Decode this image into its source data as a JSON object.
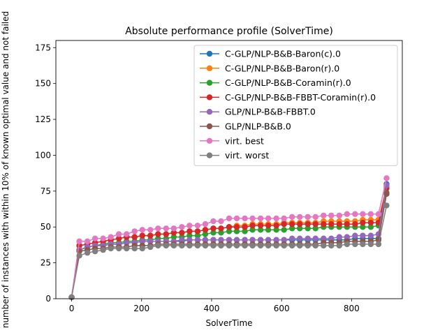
{
  "chart_data": {
    "type": "line",
    "title": "Absolute performance profile (SolverTime)",
    "xlabel": "SolverTime",
    "ylabel": "number of instances with within 10% of known optimal value and not failed",
    "xlim": [
      -45,
      945
    ],
    "ylim": [
      0,
      180
    ],
    "xticks": [
      0,
      200,
      400,
      600,
      800
    ],
    "yticks": [
      0,
      25,
      50,
      75,
      100,
      125,
      150,
      175
    ],
    "grid": false,
    "legend_position": "top-right",
    "x": [
      0,
      22,
      45,
      67,
      90,
      112,
      135,
      157,
      180,
      202,
      225,
      247,
      270,
      292,
      315,
      337,
      360,
      382,
      405,
      427,
      450,
      472,
      495,
      517,
      540,
      562,
      585,
      607,
      630,
      652,
      675,
      697,
      720,
      742,
      765,
      787,
      810,
      832,
      855,
      877,
      900
    ],
    "series": [
      {
        "name": "C-GLP/NLP-B&B-Baron(c).0",
        "color": "#1f77b4",
        "values": [
          1,
          34,
          36,
          37,
          37,
          38,
          38,
          39,
          39,
          40,
          40,
          40,
          40,
          40,
          40,
          41,
          41,
          41,
          41,
          41,
          41,
          41,
          41,
          41,
          41,
          41,
          41,
          41,
          41,
          41,
          41,
          41,
          41,
          41,
          41,
          41,
          42,
          42,
          42,
          42,
          80
        ]
      },
      {
        "name": "C-GLP/NLP-B&B-Baron(r).0",
        "color": "#ff7f0e",
        "values": [
          1,
          37,
          38,
          39,
          40,
          41,
          42,
          43,
          43,
          44,
          44,
          45,
          45,
          46,
          46,
          47,
          47,
          48,
          49,
          49,
          50,
          51,
          51,
          52,
          52,
          52,
          52,
          53,
          53,
          53,
          53,
          53,
          54,
          54,
          54,
          54,
          54,
          55,
          55,
          55,
          78
        ]
      },
      {
        "name": "C-GLP/NLP-B&B-Coramin(r).0",
        "color": "#2ca02c",
        "values": [
          1,
          34,
          36,
          37,
          38,
          39,
          39,
          40,
          40,
          41,
          41,
          42,
          42,
          43,
          43,
          44,
          44,
          45,
          46,
          46,
          47,
          47,
          47,
          48,
          48,
          48,
          48,
          48,
          49,
          49,
          49,
          49,
          50,
          50,
          50,
          50,
          50,
          50,
          50,
          51,
          74
        ]
      },
      {
        "name": "C-GLP/NLP-B&B-FBBT-Coramin(r).0",
        "color": "#d62728",
        "values": [
          1,
          37,
          38,
          39,
          40,
          41,
          42,
          43,
          43,
          44,
          44,
          45,
          45,
          46,
          46,
          47,
          47,
          48,
          49,
          49,
          50,
          50,
          50,
          51,
          51,
          51,
          51,
          52,
          52,
          52,
          52,
          52,
          52,
          52,
          52,
          52,
          52,
          53,
          53,
          53,
          77
        ]
      },
      {
        "name": "GLP/NLP-B&B-FBBT.0",
        "color": "#9467bd",
        "values": [
          1,
          34,
          36,
          37,
          37,
          38,
          38,
          39,
          39,
          40,
          40,
          40,
          40,
          40,
          41,
          41,
          41,
          41,
          41,
          41,
          41,
          41,
          41,
          41,
          41,
          41,
          41,
          41,
          42,
          42,
          42,
          42,
          42,
          42,
          43,
          43,
          44,
          44,
          44,
          45,
          79
        ]
      },
      {
        "name": "GLP/NLP-B&B.0",
        "color": "#8c564b",
        "values": [
          1,
          33,
          34,
          35,
          35,
          36,
          36,
          36,
          37,
          37,
          37,
          38,
          38,
          38,
          38,
          38,
          38,
          38,
          38,
          38,
          38,
          38,
          38,
          38,
          38,
          38,
          38,
          38,
          38,
          38,
          38,
          38,
          39,
          39,
          39,
          40,
          40,
          40,
          40,
          41,
          73
        ]
      },
      {
        "name": "virt. best",
        "color": "#e377c2",
        "values": [
          1,
          40,
          40,
          42,
          42,
          43,
          45,
          45,
          47,
          48,
          48,
          49,
          49,
          49,
          50,
          51,
          51,
          52,
          54,
          54,
          56,
          56,
          56,
          56,
          56,
          56,
          56,
          56,
          57,
          57,
          57,
          57,
          58,
          58,
          58,
          59,
          59,
          59,
          59,
          59,
          84
        ]
      },
      {
        "name": "virt. worst",
        "color": "#7f7f7f",
        "values": [
          1,
          30,
          32,
          33,
          34,
          35,
          35,
          35,
          35,
          35,
          36,
          37,
          37,
          37,
          37,
          37,
          37,
          37,
          37,
          37,
          37,
          37,
          37,
          37,
          37,
          37,
          37,
          37,
          37,
          37,
          37,
          37,
          37,
          37,
          37,
          38,
          38,
          38,
          38,
          38,
          65
        ]
      }
    ]
  }
}
